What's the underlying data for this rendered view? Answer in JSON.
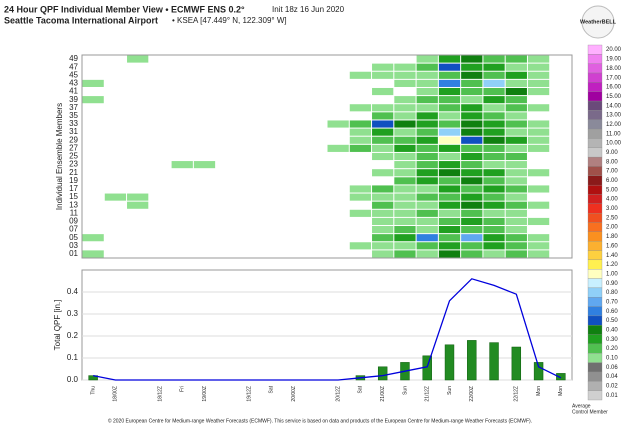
{
  "title": "24 Hour QPF Individual Member View • ECMWF ENS 0.2°",
  "init": "Init 18z 16 Jun 2020",
  "subtitle": "Seattle Tacoma International Airport",
  "station": "• KSEA [47.449° N, 122.309° W]",
  "logo": "WeatherBELL",
  "footer": "© 2020 European Centre for Medium-range Weather Forecasts (ECMWF). This service is based on data and products of the European Centre for Medium-range Weather Forecasts (ECMWF).",
  "chart_data": [
    {
      "type": "heatmap",
      "ylabel": "Individual Ensemble Members",
      "members": [
        "49",
        "47",
        "45",
        "43",
        "41",
        "39",
        "37",
        "35",
        "33",
        "31",
        "29",
        "27",
        "25",
        "23",
        "21",
        "19",
        "17",
        "15",
        "13",
        "11",
        "09",
        "07",
        "05",
        "03",
        "01"
      ],
      "rows": [
        [
          0,
          0,
          0.1,
          0,
          0,
          0,
          0,
          0,
          0,
          0,
          0,
          0,
          0,
          0,
          0,
          0.1,
          0.3,
          0.4,
          0.2,
          0.2,
          0.1,
          0
        ],
        [
          0,
          0,
          0,
          0,
          0,
          0,
          0,
          0,
          0,
          0,
          0,
          0,
          0,
          0.1,
          0.1,
          0.2,
          0.5,
          0.3,
          0.3,
          0.1,
          0.1,
          0
        ],
        [
          0,
          0,
          0,
          0,
          0,
          0,
          0,
          0,
          0,
          0,
          0,
          0,
          0.1,
          0.1,
          0.1,
          0.1,
          0.2,
          0.4,
          0.2,
          0.3,
          0.1,
          0
        ],
        [
          0.1,
          0,
          0,
          0,
          0,
          0,
          0,
          0,
          0,
          0,
          0,
          0,
          0,
          0,
          0.1,
          0.1,
          0.6,
          0.2,
          0.8,
          0.1,
          0.1,
          0
        ],
        [
          0,
          0,
          0,
          0,
          0,
          0,
          0,
          0,
          0,
          0,
          0,
          0,
          0,
          0.1,
          0,
          0.1,
          0.3,
          0.2,
          0.2,
          0.4,
          0.1,
          0
        ],
        [
          0.1,
          0,
          0,
          0,
          0,
          0,
          0,
          0,
          0,
          0,
          0,
          0,
          0,
          0,
          0.1,
          0.2,
          0.2,
          0.1,
          0.3,
          0.2,
          0,
          0
        ],
        [
          0,
          0,
          0,
          0,
          0,
          0,
          0,
          0,
          0,
          0,
          0,
          0,
          0.1,
          0.1,
          0.1,
          0.1,
          0.2,
          0.3,
          0.1,
          0.2,
          0.1,
          0
        ],
        [
          0,
          0,
          0,
          0,
          0,
          0,
          0,
          0,
          0,
          0,
          0,
          0,
          0,
          0.2,
          0.1,
          0.3,
          0.1,
          0.3,
          0.2,
          0.1,
          0,
          0
        ],
        [
          0,
          0,
          0,
          0,
          0,
          0,
          0,
          0,
          0,
          0,
          0,
          0.1,
          0.2,
          0.5,
          0.4,
          0.3,
          0.2,
          0.4,
          0.3,
          0.2,
          0.1,
          0
        ],
        [
          0,
          0,
          0,
          0,
          0,
          0,
          0,
          0,
          0,
          0,
          0,
          0,
          0.1,
          0.3,
          0.1,
          0.2,
          0.8,
          0.4,
          0.3,
          0.1,
          0.1,
          0
        ],
        [
          0,
          0,
          0,
          0,
          0,
          0,
          0,
          0,
          0,
          0,
          0,
          0,
          0.1,
          0.2,
          0.2,
          0.3,
          1.0,
          0.5,
          0.4,
          0.3,
          0.1,
          0
        ],
        [
          0,
          0,
          0,
          0,
          0,
          0,
          0,
          0,
          0,
          0,
          0,
          0.1,
          0.2,
          0.1,
          0.3,
          0.2,
          0.3,
          0.2,
          0.2,
          0.1,
          0.1,
          0
        ],
        [
          0,
          0,
          0,
          0,
          0,
          0,
          0,
          0,
          0,
          0,
          0,
          0,
          0,
          0.1,
          0.1,
          0.2,
          0.1,
          0.3,
          0.2,
          0.2,
          0,
          0
        ],
        [
          0,
          0,
          0,
          0,
          0.1,
          0.1,
          0,
          0,
          0,
          0,
          0,
          0,
          0,
          0,
          0.1,
          0.2,
          0.3,
          0.2,
          0.1,
          0.1,
          0,
          0
        ],
        [
          0,
          0,
          0,
          0,
          0,
          0,
          0,
          0,
          0,
          0,
          0,
          0,
          0,
          0.1,
          0.1,
          0.3,
          0.4,
          0.3,
          0.3,
          0.1,
          0.1,
          0
        ],
        [
          0,
          0,
          0,
          0,
          0,
          0,
          0,
          0,
          0,
          0,
          0,
          0,
          0,
          0,
          0.2,
          0.3,
          0.2,
          0.4,
          0.2,
          0.1,
          0,
          0
        ],
        [
          0,
          0,
          0,
          0,
          0,
          0,
          0,
          0,
          0,
          0,
          0,
          0,
          0.1,
          0.2,
          0.1,
          0.1,
          0.3,
          0.2,
          0.3,
          0.2,
          0.1,
          0
        ],
        [
          0,
          0.1,
          0.1,
          0,
          0,
          0,
          0,
          0,
          0,
          0,
          0,
          0,
          0.1,
          0.1,
          0.1,
          0.2,
          0.2,
          0.3,
          0.2,
          0.1,
          0,
          0
        ],
        [
          0,
          0,
          0.1,
          0,
          0,
          0,
          0,
          0,
          0,
          0,
          0,
          0,
          0,
          0.2,
          0.1,
          0.1,
          0.3,
          0.4,
          0.3,
          0.2,
          0.1,
          0
        ],
        [
          0,
          0,
          0,
          0,
          0,
          0,
          0,
          0,
          0,
          0,
          0,
          0,
          0.1,
          0.1,
          0.1,
          0.2,
          0.1,
          0.2,
          0.1,
          0.1,
          0,
          0
        ],
        [
          0,
          0,
          0,
          0,
          0,
          0,
          0,
          0,
          0,
          0,
          0,
          0,
          0,
          0.1,
          0.1,
          0.1,
          0.2,
          0.3,
          0.2,
          0.1,
          0.1,
          0
        ],
        [
          0,
          0,
          0,
          0,
          0,
          0,
          0,
          0,
          0,
          0,
          0,
          0,
          0,
          0.1,
          0.2,
          0.1,
          0.3,
          0.2,
          0.2,
          0.1,
          0,
          0
        ],
        [
          0.1,
          0,
          0,
          0,
          0,
          0,
          0,
          0,
          0,
          0,
          0,
          0,
          0,
          0.2,
          0.3,
          0.6,
          0.2,
          0.7,
          0.3,
          0.2,
          0.1,
          0
        ],
        [
          0,
          0,
          0,
          0,
          0,
          0,
          0,
          0,
          0,
          0,
          0,
          0,
          0.1,
          0.1,
          0.1,
          0.2,
          0.3,
          0.2,
          0.3,
          0.2,
          0.1,
          0
        ],
        [
          0.1,
          0,
          0,
          0,
          0,
          0,
          0,
          0,
          0,
          0,
          0,
          0,
          0,
          0.1,
          0.2,
          0.1,
          0.4,
          0.2,
          0.1,
          0.2,
          0.1,
          0
        ]
      ],
      "colorbar": {
        "levels": [
          {
            "value": 20,
            "label": "20.00",
            "color": "#ffb0ff"
          },
          {
            "value": 19,
            "label": "19.00",
            "color": "#f080f0"
          },
          {
            "value": 18,
            "label": "18.00",
            "color": "#e060e0"
          },
          {
            "value": 17,
            "label": "17.00",
            "color": "#d040d0"
          },
          {
            "value": 16,
            "label": "16.00",
            "color": "#c020c0"
          },
          {
            "value": 15,
            "label": "15.00",
            "color": "#a000a0"
          },
          {
            "value": 14,
            "label": "14.00",
            "color": "#6a4a7a"
          },
          {
            "value": 13,
            "label": "13.00",
            "color": "#7a6a8a"
          },
          {
            "value": 12,
            "label": "12.00",
            "color": "#8a8a9a"
          },
          {
            "value": 11,
            "label": "11.00",
            "color": "#a0a0a0"
          },
          {
            "value": 10,
            "label": "10.00",
            "color": "#b4b4b4"
          },
          {
            "value": 9,
            "label": "9.00",
            "color": "#c8c8c8"
          },
          {
            "value": 8,
            "label": "8.00",
            "color": "#b08080"
          },
          {
            "value": 7,
            "label": "7.00",
            "color": "#a0504a"
          },
          {
            "value": 6,
            "label": "6.00",
            "color": "#8b1a1a"
          },
          {
            "value": 5,
            "label": "5.00",
            "color": "#b01010"
          },
          {
            "value": 4,
            "label": "4.00",
            "color": "#d02020"
          },
          {
            "value": 3,
            "label": "3.00",
            "color": "#ee3020"
          },
          {
            "value": 2.5,
            "label": "2.50",
            "color": "#f05020"
          },
          {
            "value": 2,
            "label": "2.00",
            "color": "#f87020"
          },
          {
            "value": 1.8,
            "label": "1.80",
            "color": "#fa9020"
          },
          {
            "value": 1.6,
            "label": "1.60",
            "color": "#fcb030"
          },
          {
            "value": 1.4,
            "label": "1.40",
            "color": "#fdd040"
          },
          {
            "value": 1.2,
            "label": "1.20",
            "color": "#fff050"
          },
          {
            "value": 1,
            "label": "1.00",
            "color": "#ffffc0"
          },
          {
            "value": 0.9,
            "label": "0.90",
            "color": "#c8f0ff"
          },
          {
            "value": 0.8,
            "label": "0.80",
            "color": "#90d0f8"
          },
          {
            "value": 0.7,
            "label": "0.70",
            "color": "#60a8f0"
          },
          {
            "value": 0.6,
            "label": "0.60",
            "color": "#3080e0"
          },
          {
            "value": 0.5,
            "label": "0.50",
            "color": "#1050c0"
          },
          {
            "value": 0.4,
            "label": "0.40",
            "color": "#108010"
          },
          {
            "value": 0.3,
            "label": "0.30",
            "color": "#20a020"
          },
          {
            "value": 0.2,
            "label": "0.20",
            "color": "#50c050"
          },
          {
            "value": 0.1,
            "label": "0.10",
            "color": "#90e090"
          },
          {
            "value": 0.06,
            "label": "0.06",
            "color": "#707070"
          },
          {
            "value": 0.04,
            "label": "0.04",
            "color": "#909090"
          },
          {
            "value": 0.02,
            "label": "0.02",
            "color": "#b0b0b0"
          },
          {
            "value": 0.01,
            "label": "0.01",
            "color": "#d0d0d0"
          }
        ]
      },
      "notes": [
        "Average",
        "Control Member"
      ]
    },
    {
      "type": "bar",
      "ylabel": "Total QPF [in.]",
      "categories": [
        "Thu",
        "18/00Z",
        null,
        "18/12Z",
        "Fri",
        "19/00Z",
        null,
        "19/12Z",
        "Sat",
        "20/00Z",
        null,
        "20/12Z",
        "Sat",
        "21/00Z",
        "Sun",
        "21/12Z",
        "Sun",
        "22/00Z",
        null,
        "22/12Z",
        "Mon",
        "Mon"
      ],
      "series": [
        {
          "type": "bar",
          "color": "#228b22",
          "values": [
            0.02,
            0,
            0,
            0,
            0,
            0,
            0,
            0,
            0,
            0,
            0,
            0,
            0.02,
            0.06,
            0.08,
            0.11,
            0.16,
            0.18,
            0.17,
            0.15,
            0.08,
            0.03
          ]
        },
        {
          "type": "line",
          "color": "#0000dd",
          "values": [
            0.02,
            0,
            0,
            0,
            0,
            0,
            0,
            0,
            0,
            0,
            0,
            0,
            0.01,
            0.02,
            0.04,
            0.06,
            0.36,
            0.46,
            0.43,
            0.39,
            0.06,
            0.01
          ]
        }
      ],
      "ylim": [
        0,
        0.5
      ],
      "yticks": [
        {
          "value": 0,
          "label": "0.0"
        },
        0.1,
        0.2,
        0.3,
        0.4
      ],
      "grid": true
    }
  ]
}
